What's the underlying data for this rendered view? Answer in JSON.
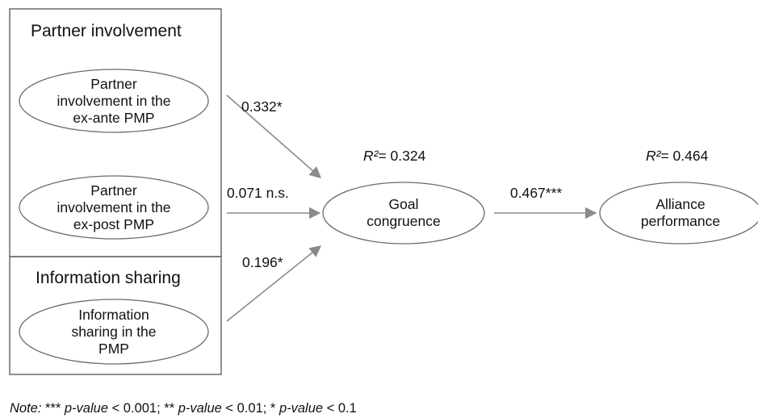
{
  "groups": {
    "partner_involvement": {
      "title": "Partner involvement"
    },
    "information_sharing": {
      "title": "Information sharing"
    }
  },
  "constructs": {
    "ex_ante": {
      "lines": [
        "Partner",
        "involvement in the",
        "ex-ante PMP"
      ]
    },
    "ex_post": {
      "lines": [
        "Partner",
        "involvement in the",
        "ex-post PMP"
      ]
    },
    "info_sharing": {
      "lines": [
        "Information",
        "sharing in the",
        "PMP"
      ]
    },
    "goal": {
      "lines": [
        "Goal",
        "congruence"
      ],
      "r2_symbol": "R²",
      "r2_value": "= 0.324"
    },
    "alliance": {
      "lines": [
        "Alliance",
        "performance"
      ],
      "r2_symbol": "R²",
      "r2_value": "= 0.464"
    }
  },
  "paths": {
    "ex_ante_to_goal": "0.332*",
    "ex_post_to_goal": "0.071 n.s.",
    "info_to_goal": "0.196*",
    "goal_to_alliance": "0.467***"
  },
  "note": {
    "label": "Note:",
    "parts": [
      {
        "stars": " *** ",
        "term": "p-value",
        "rest": " < 0.001;"
      },
      {
        "stars": " ** ",
        "term": "p-value",
        "rest": " < 0.01;"
      },
      {
        "stars": " * ",
        "term": "p-value",
        "rest": " < 0.1"
      }
    ]
  },
  "colors": {
    "line": "#6b6b6b",
    "arrow": "#8a8a8a",
    "box": "#6b6b6b"
  }
}
